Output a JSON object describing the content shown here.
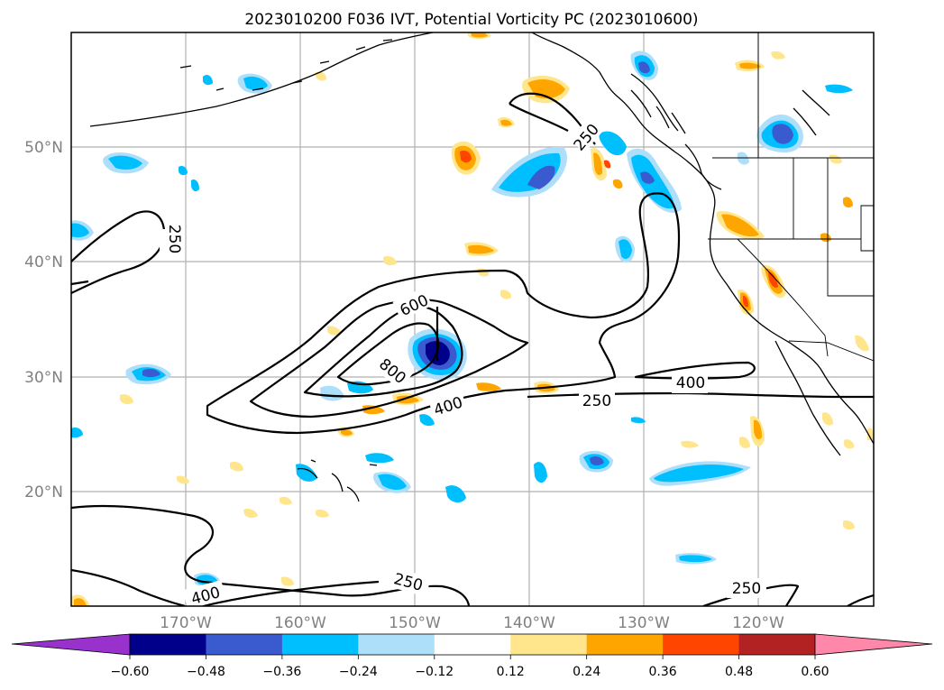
{
  "title": "2023010200 F036 IVT, Potential Vorticity PC (2023010600)",
  "map": {
    "lat_labels": [
      "50°N",
      "40°N",
      "30°N",
      "20°N"
    ],
    "lon_labels": [
      "170°W",
      "160°W",
      "150°W",
      "140°W",
      "130°W",
      "120°W"
    ],
    "ivt_contour_labels": [
      "250",
      "250",
      "600",
      "800",
      "400",
      "250",
      "400",
      "250",
      "400",
      "250"
    ]
  },
  "colorbar": {
    "ticks": [
      "−0.60",
      "−0.48",
      "−0.36",
      "−0.24",
      "−0.12",
      "0.12",
      "0.24",
      "0.36",
      "0.48",
      "0.60"
    ],
    "colors": [
      "#9932CC",
      "#00008B",
      "#3A5BD0",
      "#00BFFF",
      "#ADDFFA",
      "#FFFFFF",
      "#FFE68C",
      "#FFA500",
      "#FF4500",
      "#B22222",
      "#FF88AA"
    ]
  }
}
